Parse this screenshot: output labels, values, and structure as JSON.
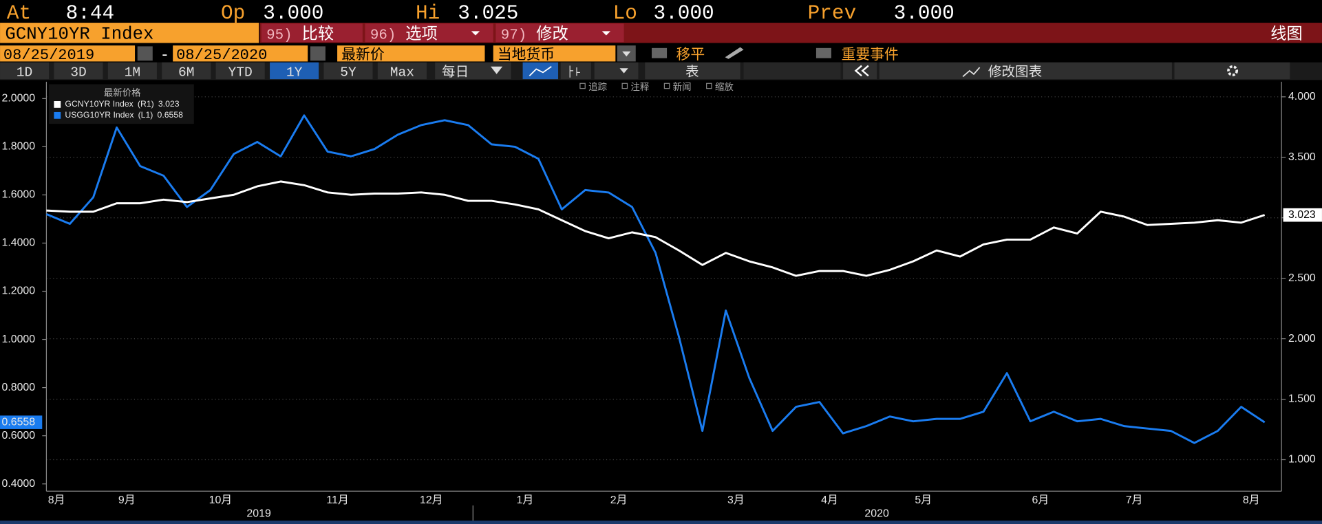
{
  "header": {
    "at_label": "At",
    "at": "8:44",
    "op_label": "Op",
    "op": "3.000",
    "hi_label": "Hi",
    "hi": "3.025",
    "lo_label": "Lo",
    "lo": "3.000",
    "prev_label": "Prev",
    "prev": "3.000"
  },
  "toolbar": {
    "security": "GCNY10YR Index",
    "menu": [
      {
        "num": "95)",
        "label": "比较"
      },
      {
        "num": "96)",
        "label": "选项"
      },
      {
        "num": "97)",
        "label": "修改"
      }
    ],
    "view": "线图",
    "start_date": "08/25/2019",
    "date_separator": "-",
    "end_date": "08/25/2020",
    "field": "最新价",
    "currency": "当地货币",
    "options": [
      "移平",
      "重要事件"
    ],
    "ranges": [
      "1D",
      "3D",
      "1M",
      "6M",
      "YTD",
      "1Y",
      "5Y",
      "Max"
    ],
    "active_range": "1Y",
    "frequency": "每日",
    "table": "表",
    "edit_chart": "修改图表",
    "chart_tools": [
      "追踪",
      "注释",
      "新闻",
      "缩放"
    ]
  },
  "chart_data": {
    "type": "line",
    "legend_title": "最新价格",
    "legend": "top-left",
    "grid": true,
    "categories": [
      "8月",
      null,
      null,
      "9月",
      null,
      null,
      null,
      "10月",
      null,
      null,
      null,
      null,
      "11月",
      null,
      null,
      null,
      "12月",
      null,
      null,
      null,
      "1月",
      null,
      null,
      null,
      "2月",
      null,
      null,
      null,
      null,
      "3月",
      null,
      null,
      null,
      "4月",
      null,
      null,
      null,
      "5月",
      null,
      null,
      null,
      null,
      "6月",
      null,
      null,
      null,
      "7月",
      null,
      null,
      null,
      null,
      "8月",
      null
    ],
    "year_labels": [
      "2019",
      "2020"
    ],
    "series": [
      {
        "name": "GCNY10YR Index",
        "axis_label": "(R1)",
        "axis": "y2",
        "color": "#ffffff",
        "values": [
          3.06,
          3.05,
          3.05,
          3.12,
          3.12,
          3.15,
          3.13,
          3.16,
          3.19,
          3.26,
          3.3,
          3.27,
          3.21,
          3.19,
          3.2,
          3.2,
          3.21,
          3.19,
          3.14,
          3.14,
          3.11,
          3.07,
          2.98,
          2.89,
          2.83,
          2.88,
          2.84,
          2.73,
          2.61,
          2.71,
          2.64,
          2.59,
          2.52,
          2.56,
          2.56,
          2.52,
          2.57,
          2.64,
          2.73,
          2.68,
          2.78,
          2.82,
          2.82,
          2.92,
          2.87,
          3.05,
          3.01,
          2.94,
          2.95,
          2.96,
          2.98,
          2.96,
          3.023
        ]
      },
      {
        "name": "USGG10YR Index",
        "axis_label": "(L1)",
        "axis": "y",
        "color": "#1a7cf0",
        "values": [
          1.52,
          1.48,
          1.59,
          1.88,
          1.72,
          1.68,
          1.55,
          1.62,
          1.77,
          1.82,
          1.76,
          1.93,
          1.78,
          1.76,
          1.79,
          1.85,
          1.89,
          1.91,
          1.89,
          1.81,
          1.8,
          1.75,
          1.54,
          1.62,
          1.61,
          1.55,
          1.36,
          1.01,
          0.62,
          1.12,
          0.84,
          0.62,
          0.72,
          0.74,
          0.61,
          0.64,
          0.68,
          0.66,
          0.67,
          0.67,
          0.7,
          0.86,
          0.66,
          0.7,
          0.66,
          0.67,
          0.64,
          0.63,
          0.62,
          0.57,
          0.62,
          0.72,
          0.6558
        ]
      }
    ],
    "ylim": [
      0.37,
      2.07
    ],
    "yticks": [
      {
        "value": 0.4,
        "label": "0.4000"
      },
      {
        "value": 0.6,
        "label": "0.6000"
      },
      {
        "value": 0.8,
        "label": "0.8000"
      },
      {
        "value": 1.0,
        "label": "1.0000"
      },
      {
        "value": 1.2,
        "label": "1.2000"
      },
      {
        "value": 1.4,
        "label": "1.4000"
      },
      {
        "value": 1.6,
        "label": "1.6000"
      },
      {
        "value": 1.8,
        "label": "1.8000"
      },
      {
        "value": 2.0,
        "label": "2.0000"
      }
    ],
    "y2lim": [
      0.74,
      4.125
    ],
    "y2ticks": [
      {
        "value": 1.0,
        "label": "1.000"
      },
      {
        "value": 1.5,
        "label": "1.500"
      },
      {
        "value": 2.0,
        "label": "2.000"
      },
      {
        "value": 2.5,
        "label": "2.500"
      },
      {
        "value": 3.0,
        "label": "3.000"
      },
      {
        "value": 3.5,
        "label": "3.500"
      },
      {
        "value": 4.0,
        "label": "4.000"
      }
    ]
  }
}
